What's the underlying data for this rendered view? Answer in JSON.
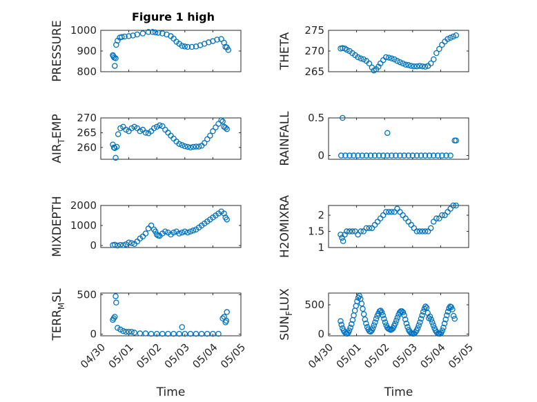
{
  "figure_title": "Figure 1 high",
  "colors": {
    "marker": "#0072BD",
    "axes": "#262626",
    "grid": "#dcdcdc"
  },
  "chart_data": [
    {
      "type": "scatter",
      "ylabel": "PRESSURE",
      "xlabel": "",
      "ylim": [
        800,
        1000
      ],
      "yticks": [
        800,
        900,
        1000
      ],
      "xlim": [
        0,
        5
      ],
      "xticks": [
        0,
        1,
        2,
        3,
        4,
        5
      ],
      "xticklabels": [
        "",
        "",
        "",
        "",
        "",
        ""
      ],
      "grid": true,
      "x": [
        0.43,
        0.45,
        0.48,
        0.5,
        0.53,
        0.55,
        0.6,
        0.68,
        0.75,
        0.85,
        1.0,
        1.15,
        1.3,
        1.5,
        1.7,
        1.85,
        1.95,
        2.05,
        2.2,
        2.35,
        2.5,
        2.6,
        2.7,
        2.8,
        2.9,
        3.0,
        3.1,
        3.25,
        3.4,
        3.55,
        3.7,
        3.85,
        4.0,
        4.15,
        4.3,
        4.4,
        4.45,
        4.5,
        4.55
      ],
      "y": [
        880,
        875,
        868,
        828,
        865,
        930,
        950,
        965,
        968,
        970,
        972,
        975,
        980,
        985,
        992,
        992,
        990,
        988,
        985,
        980,
        972,
        960,
        945,
        935,
        925,
        922,
        920,
        920,
        922,
        928,
        935,
        942,
        948,
        955,
        958,
        940,
        920,
        918,
        905
      ]
    },
    {
      "type": "scatter",
      "ylabel": "THETA",
      "xlabel": "",
      "ylim": [
        265,
        275
      ],
      "yticks": [
        265,
        270,
        275
      ],
      "xlim": [
        0,
        5
      ],
      "xticks": [
        0,
        1,
        2,
        3,
        4,
        5
      ],
      "xticklabels": [
        "",
        "",
        "",
        "",
        "",
        ""
      ],
      "grid": true,
      "x": [
        0.43,
        0.5,
        0.58,
        0.65,
        0.75,
        0.85,
        0.95,
        1.05,
        1.15,
        1.25,
        1.35,
        1.45,
        1.55,
        1.62,
        1.7,
        1.78,
        1.85,
        1.95,
        2.05,
        2.15,
        2.25,
        2.35,
        2.45,
        2.55,
        2.65,
        2.75,
        2.85,
        2.95,
        3.05,
        3.15,
        3.25,
        3.35,
        3.45,
        3.55,
        3.65,
        3.75,
        3.85,
        3.95,
        4.05,
        4.15,
        4.25,
        4.35,
        4.45,
        4.55
      ],
      "y": [
        270.6,
        270.7,
        270.6,
        270.3,
        270.0,
        269.5,
        269.0,
        268.5,
        268.2,
        268.0,
        267.6,
        267.0,
        266.0,
        265.3,
        265.6,
        266.2,
        267.0,
        267.8,
        268.5,
        268.4,
        268.2,
        268.0,
        267.6,
        267.3,
        267.0,
        266.7,
        266.6,
        266.4,
        266.3,
        266.3,
        266.4,
        266.3,
        266.2,
        266.4,
        267.0,
        268.0,
        269.5,
        270.5,
        271.5,
        272.3,
        272.9,
        273.2,
        273.5,
        273.8
      ]
    },
    {
      "type": "scatter",
      "ylabel": "AIR_TEMP",
      "xlabel": "",
      "ylim": [
        256,
        270
      ],
      "yticks": [
        260,
        265,
        270
      ],
      "xlim": [
        0,
        5
      ],
      "xticks": [
        0,
        1,
        2,
        3,
        4,
        5
      ],
      "xticklabels": [
        "",
        "",
        "",
        "",
        "",
        ""
      ],
      "grid": true,
      "x": [
        0.43,
        0.47,
        0.5,
        0.53,
        0.57,
        0.62,
        0.7,
        0.8,
        0.9,
        1.0,
        1.1,
        1.2,
        1.3,
        1.4,
        1.5,
        1.6,
        1.7,
        1.8,
        1.9,
        2.0,
        2.1,
        2.2,
        2.3,
        2.4,
        2.5,
        2.6,
        2.7,
        2.8,
        2.9,
        3.0,
        3.1,
        3.2,
        3.3,
        3.4,
        3.5,
        3.6,
        3.7,
        3.8,
        3.9,
        4.0,
        4.1,
        4.2,
        4.3,
        4.35,
        4.4,
        4.45,
        4.5
      ],
      "y": [
        261,
        260,
        259.8,
        256.5,
        260.2,
        264.5,
        266.5,
        267.0,
        266.0,
        265.5,
        266.5,
        267.0,
        266.5,
        265.5,
        266.0,
        265.0,
        264.8,
        265.5,
        266.5,
        267.0,
        267.5,
        267.2,
        266.0,
        265.0,
        264.0,
        263.0,
        262.0,
        261.2,
        260.8,
        260.4,
        260.2,
        260.0,
        260.2,
        260.3,
        260.3,
        260.6,
        261.5,
        262.8,
        264.0,
        265.5,
        266.8,
        268.0,
        269.2,
        268.8,
        267.0,
        266.7,
        266.2
      ]
    },
    {
      "type": "scatter",
      "ylabel": "RAINFALL",
      "xlabel": "",
      "ylim": [
        -0.05,
        0.5
      ],
      "yticks": [
        0,
        0.5
      ],
      "xlim": [
        0,
        5
      ],
      "xticks": [
        0,
        1,
        2,
        3,
        4,
        5
      ],
      "xticklabels": [
        "",
        "",
        "",
        "",
        "",
        ""
      ],
      "grid": true,
      "x": [
        0.45,
        0.6,
        0.75,
        0.9,
        1.05,
        1.2,
        1.35,
        1.5,
        1.65,
        1.8,
        1.95,
        2.1,
        2.25,
        2.4,
        2.55,
        2.7,
        2.85,
        3.0,
        3.15,
        3.3,
        3.45,
        3.6,
        3.75,
        3.9,
        4.05,
        4.2,
        4.35,
        0.5,
        2.1,
        4.5,
        4.55
      ],
      "y": [
        0,
        0,
        0,
        0,
        0,
        0,
        0,
        0,
        0,
        0,
        0,
        0,
        0,
        0,
        0,
        0,
        0,
        0,
        0,
        0,
        0,
        0,
        0,
        0,
        0,
        0,
        0,
        0.5,
        0.3,
        0.2,
        0.2
      ]
    },
    {
      "type": "scatter",
      "ylabel": "MIXDEPTH",
      "xlabel": "",
      "ylim": [
        -100,
        2000
      ],
      "yticks": [
        0,
        1000,
        2000
      ],
      "xlim": [
        0,
        5
      ],
      "xticks": [
        0,
        1,
        2,
        3,
        4,
        5
      ],
      "xticklabels": [
        "",
        "",
        "",
        "",
        "",
        ""
      ],
      "grid": true,
      "x": [
        0.43,
        0.5,
        0.6,
        0.7,
        0.8,
        0.9,
        1.0,
        1.1,
        1.2,
        1.3,
        1.4,
        1.5,
        1.6,
        1.7,
        1.8,
        1.9,
        1.95,
        2.0,
        2.05,
        2.1,
        2.2,
        2.3,
        2.4,
        2.5,
        2.6,
        2.7,
        2.8,
        2.9,
        3.0,
        3.1,
        3.2,
        3.3,
        3.4,
        3.5,
        3.6,
        3.7,
        3.8,
        3.9,
        4.0,
        4.1,
        4.2,
        4.3,
        4.4,
        4.45,
        4.5
      ],
      "y": [
        20,
        40,
        0,
        30,
        20,
        60,
        150,
        120,
        80,
        200,
        350,
        450,
        600,
        850,
        1000,
        800,
        700,
        550,
        500,
        480,
        600,
        700,
        650,
        550,
        650,
        700,
        600,
        650,
        700,
        650,
        700,
        750,
        800,
        900,
        1000,
        1100,
        1200,
        1300,
        1400,
        1500,
        1600,
        1700,
        1600,
        1400,
        1300
      ]
    },
    {
      "type": "scatter",
      "ylabel": "H2OMIXRA",
      "xlabel": "",
      "ylim": [
        1,
        2.3
      ],
      "yticks": [
        1,
        1.5,
        2
      ],
      "xlim": [
        0,
        5
      ],
      "xticks": [
        0,
        1,
        2,
        3,
        4,
        5
      ],
      "xticklabels": [
        "",
        "",
        "",
        "",
        "",
        ""
      ],
      "grid": true,
      "x": [
        0.43,
        0.48,
        0.52,
        0.58,
        0.65,
        0.75,
        0.85,
        0.95,
        1.05,
        1.15,
        1.25,
        1.35,
        1.45,
        1.55,
        1.65,
        1.75,
        1.85,
        1.95,
        2.05,
        2.15,
        2.25,
        2.35,
        2.45,
        2.55,
        2.65,
        2.75,
        2.85,
        2.95,
        3.05,
        3.15,
        3.25,
        3.35,
        3.45,
        3.55,
        3.65,
        3.75,
        3.85,
        3.95,
        4.05,
        4.15,
        4.25,
        4.35,
        4.45,
        4.55
      ],
      "y": [
        1.4,
        1.3,
        1.2,
        1.4,
        1.5,
        1.5,
        1.5,
        1.5,
        1.4,
        1.5,
        1.5,
        1.6,
        1.6,
        1.6,
        1.7,
        1.8,
        1.9,
        2.0,
        2.1,
        2.1,
        2.1,
        2.1,
        2.2,
        2.1,
        2.0,
        1.9,
        1.8,
        1.7,
        1.6,
        1.5,
        1.5,
        1.5,
        1.5,
        1.5,
        1.6,
        1.8,
        1.9,
        1.9,
        2.0,
        2.0,
        2.1,
        2.2,
        2.3,
        2.3
      ]
    },
    {
      "type": "scatter",
      "ylabel": "TERR_MSL",
      "xlabel": "Time",
      "ylim": [
        -20,
        520
      ],
      "yticks": [
        0,
        500
      ],
      "xlim": [
        0,
        5
      ],
      "xticks": [
        0,
        1,
        2,
        3,
        4,
        5
      ],
      "xticklabels": [
        "04/30",
        "05/01",
        "05/02",
        "05/03",
        "05/04",
        "05/05"
      ],
      "grid": true,
      "x": [
        0.43,
        0.46,
        0.5,
        0.53,
        0.55,
        0.6,
        0.7,
        0.8,
        0.9,
        1.0,
        1.1,
        1.2,
        1.4,
        1.6,
        1.8,
        2.0,
        2.2,
        2.4,
        2.6,
        2.8,
        2.9,
        3.0,
        3.2,
        3.4,
        3.6,
        3.8,
        4.0,
        4.2,
        4.35,
        4.4,
        4.45,
        4.48,
        4.5
      ],
      "y": [
        180,
        200,
        220,
        480,
        400,
        80,
        60,
        40,
        30,
        30,
        30,
        20,
        10,
        10,
        5,
        5,
        5,
        5,
        5,
        5,
        90,
        5,
        5,
        5,
        5,
        5,
        5,
        5,
        200,
        220,
        150,
        170,
        280
      ]
    },
    {
      "type": "scatter",
      "ylabel": "SUN_FLUX",
      "xlabel": "Time",
      "ylim": [
        -30,
        700
      ],
      "yticks": [
        0,
        500
      ],
      "xlim": [
        0,
        5
      ],
      "xticks": [
        0,
        1,
        2,
        3,
        4,
        5
      ],
      "xticklabels": [
        "04/30",
        "05/01",
        "05/02",
        "05/03",
        "05/04",
        "05/05"
      ],
      "grid": true,
      "x": [
        0.43,
        0.46,
        0.5,
        0.54,
        0.58,
        0.62,
        0.66,
        0.7,
        0.74,
        0.78,
        0.82,
        0.86,
        0.9,
        0.94,
        0.98,
        1.02,
        1.06,
        1.1,
        1.14,
        1.18,
        1.22,
        1.26,
        1.3,
        1.34,
        1.38,
        1.42,
        1.46,
        1.5,
        1.54,
        1.58,
        1.62,
        1.66,
        1.7,
        1.74,
        1.78,
        1.82,
        1.86,
        1.9,
        1.94,
        1.98,
        2.02,
        2.06,
        2.1,
        2.14,
        2.18,
        2.22,
        2.26,
        2.3,
        2.34,
        2.38,
        2.42,
        2.46,
        2.5,
        2.54,
        2.58,
        2.62,
        2.66,
        2.7,
        2.74,
        2.78,
        2.82,
        2.86,
        2.9,
        2.94,
        2.98,
        3.02,
        3.06,
        3.1,
        3.14,
        3.18,
        3.22,
        3.26,
        3.3,
        3.34,
        3.38,
        3.42,
        3.46,
        3.5,
        3.54,
        3.58,
        3.62,
        3.66,
        3.7,
        3.74,
        3.78,
        3.82,
        3.86,
        3.9,
        3.94,
        3.98,
        4.02,
        4.06,
        4.1,
        4.14,
        4.18,
        4.22,
        4.26,
        4.3,
        4.34,
        4.38,
        4.42,
        4.46,
        4.5
      ],
      "y": [
        220,
        160,
        100,
        60,
        30,
        10,
        5,
        20,
        60,
        110,
        170,
        240,
        320,
        400,
        480,
        560,
        620,
        650,
        600,
        520,
        430,
        340,
        250,
        180,
        120,
        80,
        50,
        40,
        60,
        100,
        150,
        200,
        260,
        310,
        350,
        390,
        400,
        370,
        320,
        260,
        200,
        150,
        110,
        90,
        80,
        70,
        80,
        100,
        140,
        180,
        230,
        280,
        330,
        370,
        390,
        390,
        370,
        320,
        250,
        180,
        120,
        70,
        40,
        20,
        10,
        5,
        10,
        30,
        60,
        100,
        150,
        200,
        260,
        320,
        380,
        430,
        470,
        450,
        360,
        270,
        300,
        250,
        200,
        150,
        100,
        60,
        30,
        10,
        5,
        5,
        20,
        60,
        110,
        180,
        250,
        320,
        380,
        440,
        470,
        460,
        420,
        310,
        260
      ]
    }
  ]
}
